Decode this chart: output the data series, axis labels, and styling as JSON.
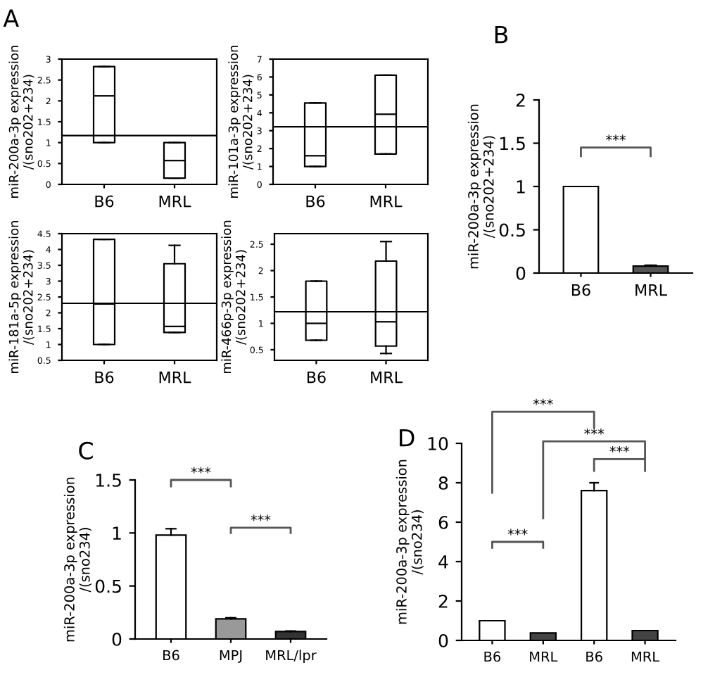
{
  "chart_data": [
    {
      "type": "box",
      "title": "A",
      "ylabel": "miR-200a-3p expression\n/(sno202+234)",
      "categories": [
        "B6",
        "MRL"
      ],
      "boxes": [
        {
          "low": 1.0,
          "q1": 1.0,
          "median": 2.12,
          "q3": 2.82,
          "high": 2.82
        },
        {
          "low": 0.15,
          "q1": 0.15,
          "median": 0.57,
          "q3": 1.0,
          "high": 1.0
        }
      ],
      "ylim": [
        0,
        3
      ],
      "yticks": [
        0,
        0.5,
        1,
        1.5,
        2,
        2.5,
        3
      ],
      "ref_lines": [
        {
          "axis": "y",
          "value": 1.17
        }
      ]
    },
    {
      "type": "box",
      "ylabel": "miR-101a-3p expression\n/(sno202+234)",
      "categories": [
        "B6",
        "MRL"
      ],
      "boxes": [
        {
          "low": 1.0,
          "q1": 1.0,
          "median": 1.6,
          "q3": 4.55,
          "high": 4.55
        },
        {
          "low": 1.7,
          "q1": 1.7,
          "median": 3.92,
          "q3": 6.1,
          "high": 6.1
        }
      ],
      "ylim": [
        0,
        7
      ],
      "yticks": [
        0,
        1,
        2,
        3,
        4,
        5,
        6,
        7
      ],
      "ref_lines": [
        {
          "axis": "y",
          "value": 3.22
        }
      ]
    },
    {
      "type": "box",
      "ylabel": "miR-181a-5p expression\n/(sno202+234)",
      "categories": [
        "B6",
        "MRL"
      ],
      "boxes": [
        {
          "low": 1.0,
          "q1": 1.0,
          "median": 2.28,
          "q3": 4.32,
          "high": 4.32
        },
        {
          "low": 1.38,
          "q1": 1.38,
          "median": 1.57,
          "q3": 3.55,
          "high": 4.13
        }
      ],
      "ylim": [
        0.5,
        4.5
      ],
      "yticks": [
        0.5,
        1,
        1.5,
        2,
        2.5,
        3,
        3.5,
        4,
        4.5
      ],
      "ref_lines": [
        {
          "axis": "y",
          "value": 2.3
        }
      ]
    },
    {
      "type": "box",
      "ylabel": "miR-466p-3p expression\n/(sno202+234)",
      "categories": [
        "B6",
        "MRL"
      ],
      "boxes": [
        {
          "low": 0.68,
          "q1": 0.68,
          "median": 1.0,
          "q3": 1.8,
          "high": 1.8
        },
        {
          "low": 0.43,
          "q1": 0.57,
          "median": 1.03,
          "q3": 2.18,
          "high": 2.55
        }
      ],
      "ylim": [
        0.3,
        2.7
      ],
      "yticks": [
        0.5,
        1,
        1.5,
        2,
        2.5
      ],
      "ref_lines": [
        {
          "axis": "y",
          "value": 1.22
        }
      ]
    },
    {
      "type": "bar",
      "title": "B",
      "ylabel": "miR-200a-3p expression\n/(sno202+234)",
      "categories": [
        "B6",
        "MRL"
      ],
      "values": [
        1.0,
        0.08
      ],
      "errors": [
        null,
        [
          0.08,
          0.09
        ]
      ],
      "colors": [
        "#ffffff",
        "#555555"
      ],
      "ylim": [
        0,
        2
      ],
      "yticks": [
        0,
        0.5,
        1,
        1.5,
        2
      ],
      "annotations": [
        "***"
      ]
    },
    {
      "type": "bar",
      "title": "C",
      "ylabel": "miR-200a-3p expression\n/(sno234)",
      "categories": [
        "B6",
        "MPJ",
        "MRL/lpr"
      ],
      "values": [
        0.98,
        0.19,
        0.07
      ],
      "errors": [
        [
          0.98,
          1.04
        ],
        [
          0.19,
          0.2
        ],
        [
          0.07,
          0.075
        ]
      ],
      "colors": [
        "#ffffff",
        "#999999",
        "#333333"
      ],
      "ylim": [
        0,
        1.5
      ],
      "yticks": [
        0,
        0.5,
        1,
        1.5
      ],
      "annotations": [
        "***",
        "***"
      ]
    },
    {
      "type": "bar",
      "title": "D",
      "ylabel": "miR-200a-3p expression\n/(sno234)",
      "categories": [
        "B6",
        "MRL",
        "B6",
        "MRL"
      ],
      "values": [
        1.0,
        0.38,
        7.6,
        0.5
      ],
      "errors": [
        null,
        null,
        [
          7.6,
          8.0
        ],
        null
      ],
      "colors": [
        "#ffffff",
        "#444444",
        "#ffffff",
        "#444444"
      ],
      "ylim": [
        0,
        10
      ],
      "yticks": [
        0,
        2,
        4,
        6,
        8,
        10
      ],
      "annotations": [
        "***",
        "***",
        "***",
        "***"
      ]
    }
  ]
}
